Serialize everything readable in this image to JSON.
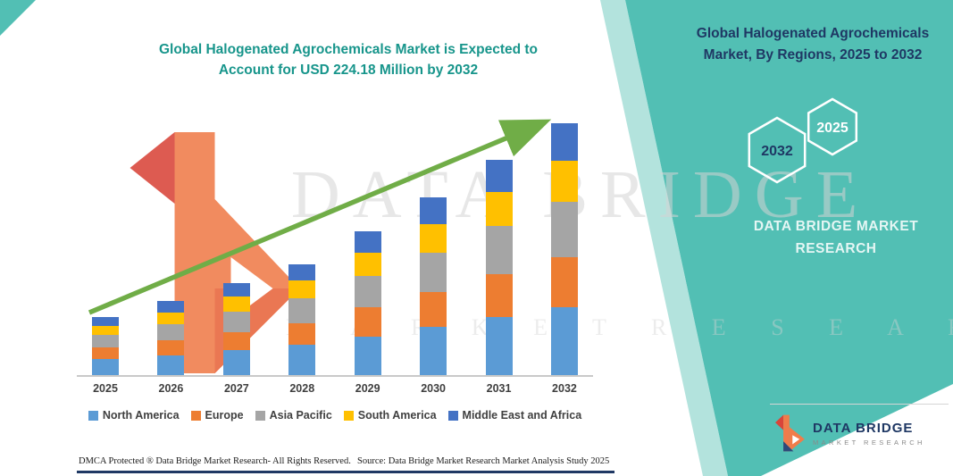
{
  "title": {
    "line1": "Global Halogenated Agrochemicals Market is Expected to",
    "line2": "Account for USD 224.18 Million by 2032"
  },
  "panel": {
    "heading_line1": "Global Halogenated Agrochemicals",
    "heading_line2": "Market, By Regions, 2025 to 2032",
    "hex_left": "2032",
    "hex_right": "2025",
    "brand_line1": "DATA BRIDGE MARKET",
    "brand_line2": "RESEARCH"
  },
  "watermark": {
    "line1": "DATA BRIDGE",
    "line2": "M A R K E T   R E S E A R C H"
  },
  "footer": {
    "dmca": "DMCA Protected ® Data Bridge Market Research-  All Rights Reserved.",
    "source": "Source: Data Bridge Market Research  Market Analysis Study 2025",
    "logo_title": "DATA BRIDGE",
    "logo_subtitle": "MARKET RESEARCH"
  },
  "chart_data": {
    "type": "bar",
    "stacked": true,
    "title": "Global Halogenated Agrochemicals Market is Expected to Account for USD 224.18 Million by 2032",
    "unit": "USD Million",
    "categories": [
      "2025",
      "2026",
      "2027",
      "2028",
      "2029",
      "2030",
      "2031",
      "2032"
    ],
    "series": [
      {
        "name": "North America",
        "color": "#5B9BD5",
        "values": [
          14.0,
          17.8,
          22.1,
          26.7,
          34.6,
          42.7,
          51.8,
          60.5
        ]
      },
      {
        "name": "Europe",
        "color": "#ED7D31",
        "values": [
          10.4,
          13.2,
          16.4,
          19.8,
          25.6,
          31.6,
          38.4,
          44.8
        ]
      },
      {
        "name": "Asia Pacific",
        "color": "#A5A5A5",
        "values": [
          11.4,
          14.5,
          18.0,
          21.8,
          28.2,
          34.8,
          42.2,
          49.3
        ]
      },
      {
        "name": "South America",
        "color": "#FFC000",
        "values": [
          8.3,
          10.6,
          13.1,
          15.8,
          20.5,
          25.3,
          30.7,
          35.9
        ]
      },
      {
        "name": "Middle East and Africa",
        "color": "#4472C4",
        "values": [
          7.8,
          9.9,
          12.3,
          14.9,
          19.2,
          23.7,
          28.8,
          33.6
        ]
      }
    ],
    "total_2032": 224.18,
    "legend_position": "bottom",
    "grid": false,
    "trend_arrow": true,
    "accent_colors": {
      "teal_panel": "#52BFB4",
      "title_teal": "#17958B",
      "heading_navy": "#1F3864",
      "arrow_green": "#70AD47"
    }
  }
}
